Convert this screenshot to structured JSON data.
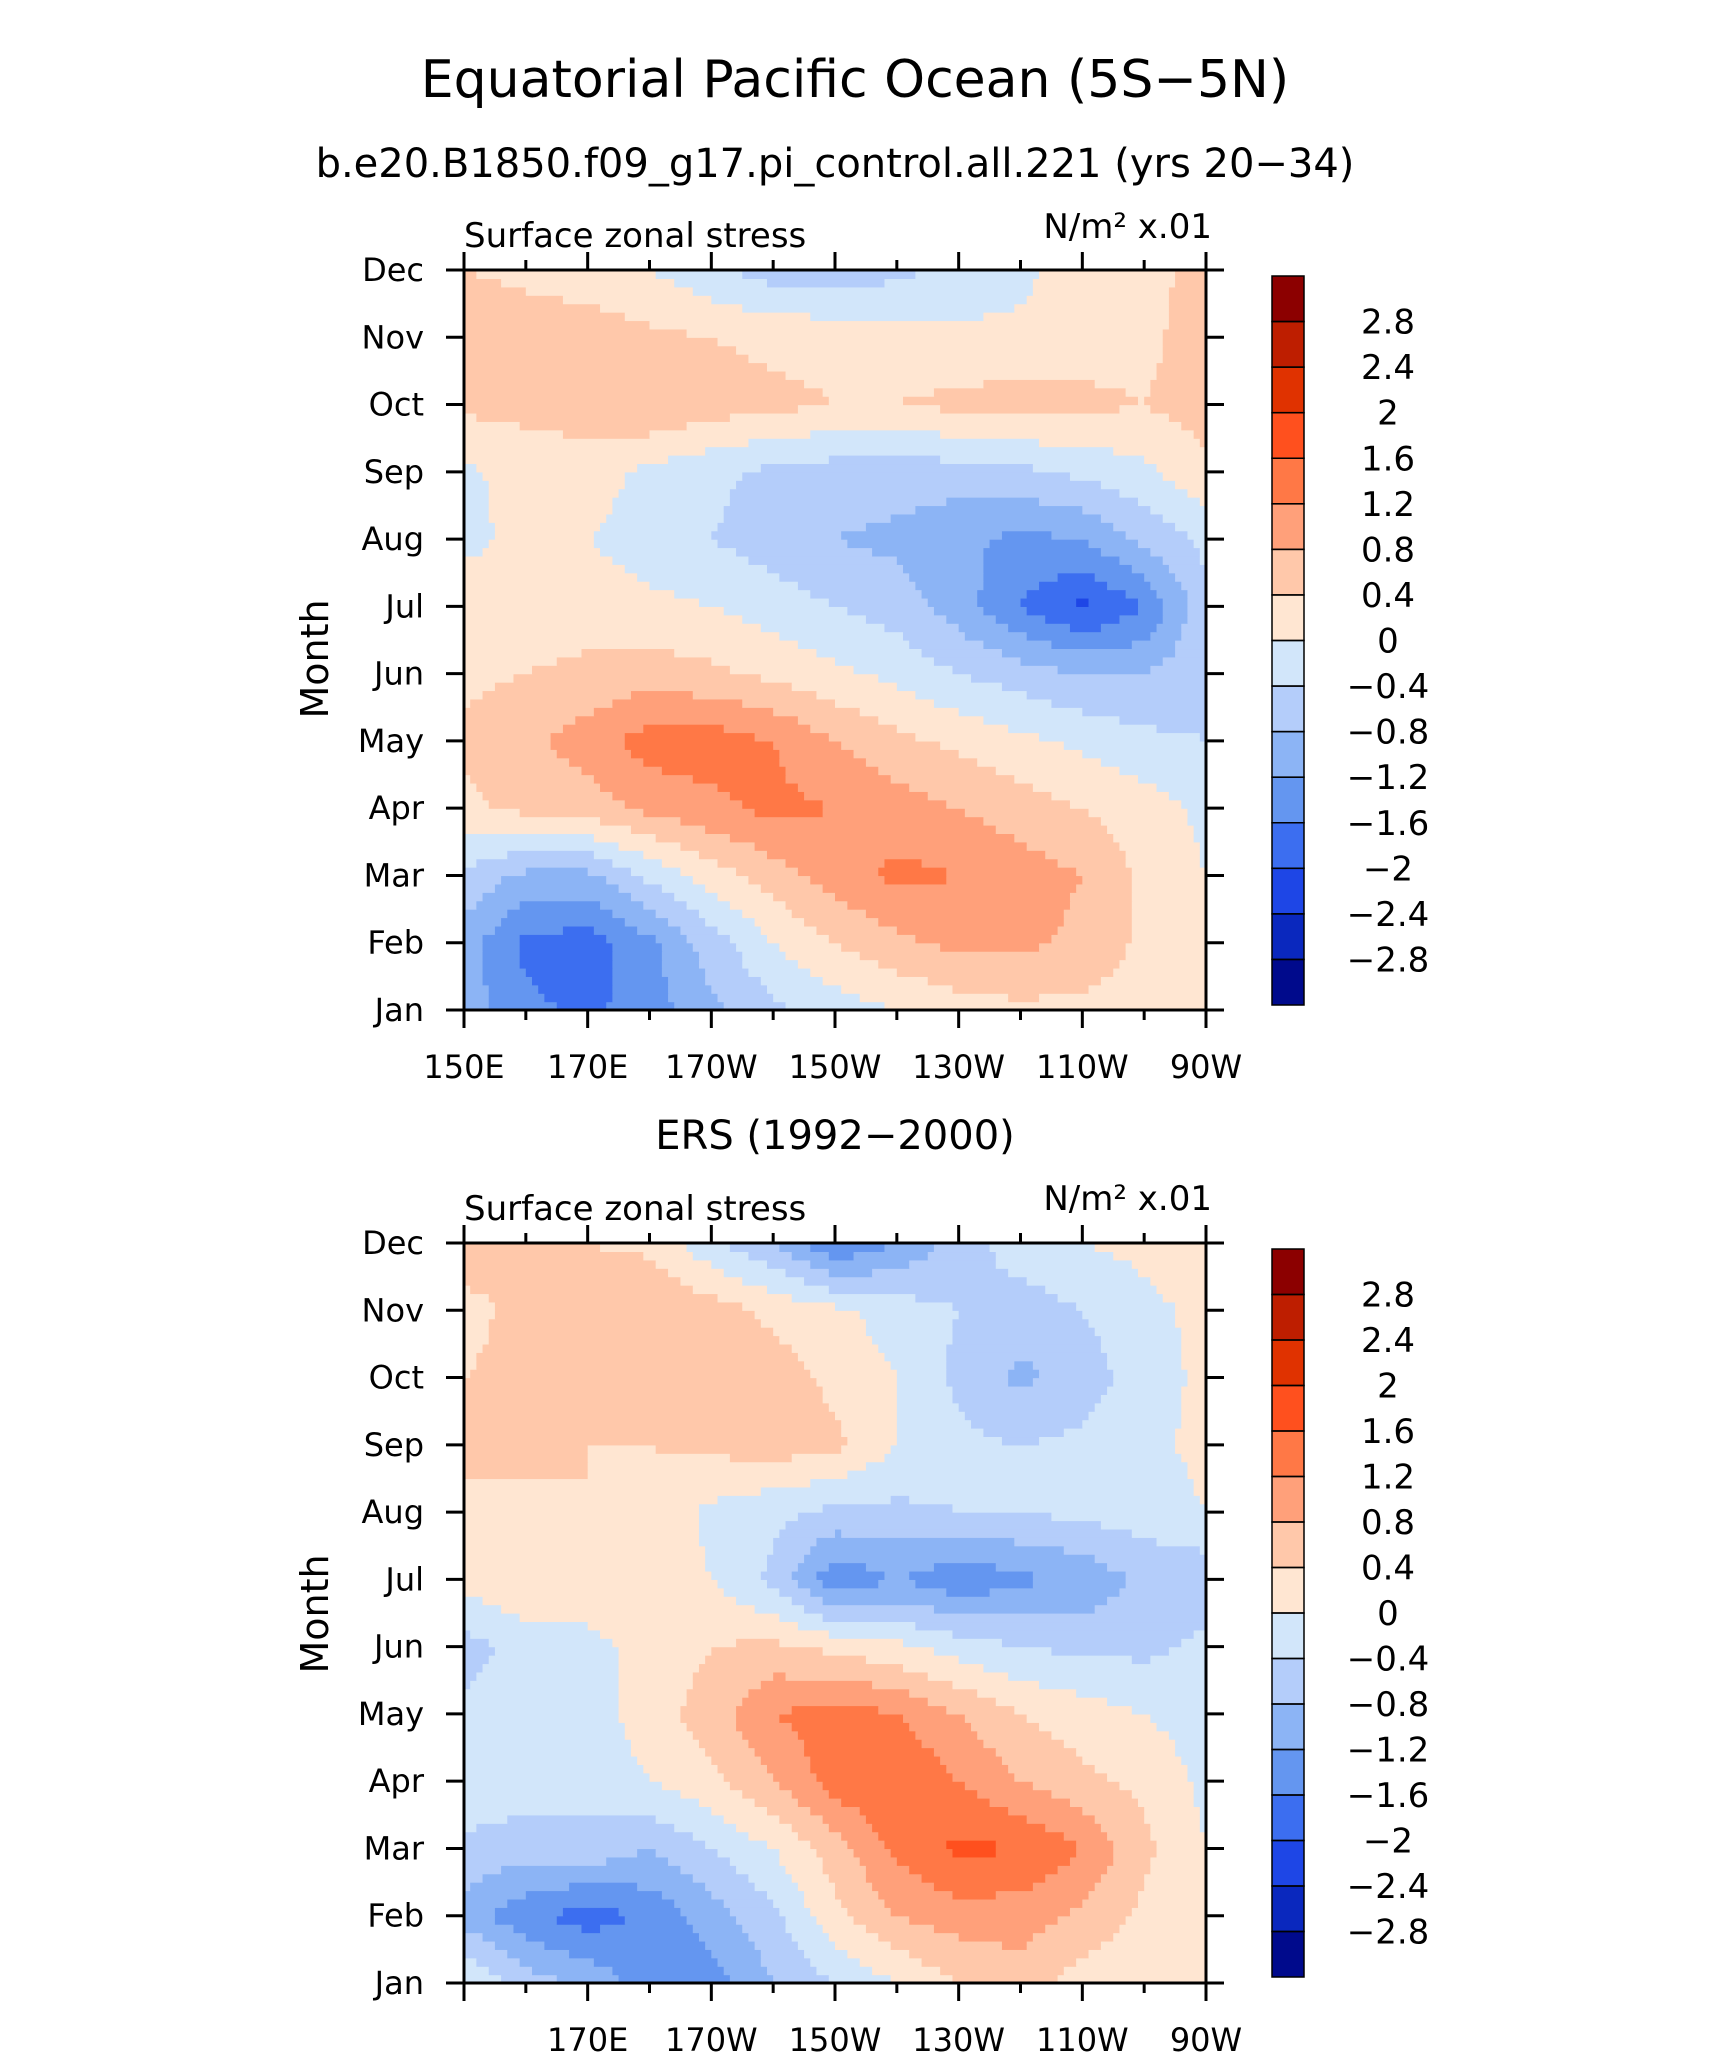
{
  "title": "Equatorial Pacific Ocean (5S−5N)",
  "colorbar": {
    "labels": [
      "2.8",
      "2.4",
      "2",
      "1.6",
      "1.2",
      "0.8",
      "0.4",
      "0",
      "−0.4",
      "−0.8",
      "−1.2",
      "−1.6",
      "−2",
      "−2.4",
      "−2.8"
    ],
    "colors": [
      "#8c0000",
      "#be1e00",
      "#e03200",
      "#ff501e",
      "#ff7846",
      "#ffa07a",
      "#ffc8aa",
      "#ffe6d2",
      "#d2e6fa",
      "#b4cdfa",
      "#8cb4f5",
      "#6496f0",
      "#3c6ef0",
      "#1e46e6",
      "#0a28be",
      "#000a8c"
    ],
    "levels": [
      -2.8,
      -2.4,
      -2.0,
      -1.6,
      -1.2,
      -0.8,
      -0.4,
      0,
      0.4,
      0.8,
      1.2,
      1.6,
      2.0,
      2.4,
      2.8
    ]
  },
  "chart_data": [
    {
      "type": "heatmap",
      "subtitle": "b.e20.B1850.f09_g17.pi_control.all.221 (yrs 20−34)",
      "left_string": "Surface zonal stress",
      "right_string": "N/m² x.01",
      "ylabel": "Month",
      "xlabel": "",
      "xlim": [
        150,
        270
      ],
      "x": [
        150,
        160,
        170,
        180,
        190,
        200,
        210,
        220,
        230,
        240,
        250,
        260,
        270
      ],
      "x_tick_values": [
        150,
        170,
        190,
        210,
        230,
        250,
        270
      ],
      "x_tick_labels": [
        "150E",
        "170E",
        "170W",
        "150W",
        "130W",
        "110W",
        "90W"
      ],
      "y": [
        "Jan",
        "Feb",
        "Mar",
        "Apr",
        "May",
        "Jun",
        "Jul",
        "Aug",
        "Sep",
        "Oct",
        "Nov",
        "Dec"
      ],
      "y_tick_labels": [
        "Jan",
        "Feb",
        "Mar",
        "Apr",
        "May",
        "Jun",
        "Jul",
        "Aug",
        "Sep",
        "Oct",
        "Nov",
        "Dec"
      ],
      "z": [
        [
          -1.0,
          -1.5,
          -1.7,
          -1.4,
          -0.9,
          -0.5,
          -0.2,
          0.0,
          0.2,
          0.3,
          0.3,
          0.2,
          0.0
        ],
        [
          -1.0,
          -1.7,
          -1.8,
          -1.3,
          -0.6,
          0.0,
          0.4,
          0.7,
          0.9,
          0.9,
          0.7,
          0.3,
          0.0
        ],
        [
          -0.5,
          -0.9,
          -0.9,
          -0.3,
          0.2,
          0.6,
          1.0,
          1.3,
          1.2,
          1.0,
          0.8,
          0.3,
          0.0
        ],
        [
          0.3,
          0.5,
          0.6,
          0.9,
          1.1,
          1.3,
          1.2,
          1.0,
          0.8,
          0.6,
          0.4,
          0.2,
          -0.1
        ],
        [
          0.5,
          0.7,
          1.0,
          1.4,
          1.4,
          1.2,
          0.8,
          0.5,
          0.3,
          0.1,
          -0.1,
          -0.3,
          -0.4
        ],
        [
          0.3,
          0.4,
          0.5,
          0.6,
          0.5,
          0.3,
          0.1,
          -0.1,
          -0.4,
          -0.6,
          -0.8,
          -0.8,
          -0.5
        ],
        [
          0.2,
          0.2,
          0.2,
          0.1,
          0.0,
          -0.2,
          -0.4,
          -0.6,
          -1.0,
          -1.6,
          -2.1,
          -1.6,
          -0.5
        ],
        [
          -0.1,
          0.1,
          0.0,
          -0.2,
          -0.4,
          -0.6,
          -0.8,
          -0.9,
          -1.1,
          -1.3,
          -1.2,
          -0.7,
          -0.3
        ],
        [
          -0.1,
          0.2,
          0.2,
          -0.1,
          -0.3,
          -0.5,
          -0.6,
          -0.6,
          -0.6,
          -0.5,
          -0.3,
          -0.1,
          0.3
        ],
        [
          0.5,
          0.5,
          0.6,
          0.8,
          0.6,
          0.5,
          0.4,
          0.4,
          0.5,
          0.6,
          0.5,
          0.4,
          0.6
        ],
        [
          0.8,
          0.6,
          0.6,
          0.5,
          0.4,
          0.3,
          0.3,
          0.2,
          0.1,
          0.1,
          0.2,
          0.3,
          0.6
        ],
        [
          0.4,
          0.3,
          0.2,
          0.0,
          -0.3,
          -0.6,
          -0.7,
          -0.5,
          -0.3,
          -0.1,
          0.2,
          0.3,
          0.5
        ]
      ]
    },
    {
      "type": "heatmap",
      "subtitle": "ERS (1992−2000)",
      "left_string": "Surface zonal stress",
      "right_string": "N/m² x.01",
      "ylabel": "Month",
      "xlabel": "",
      "xlim": [
        150,
        270
      ],
      "x": [
        150,
        160,
        170,
        180,
        190,
        200,
        210,
        220,
        230,
        240,
        250,
        260,
        270
      ],
      "x_tick_values": [
        170,
        190,
        210,
        230,
        250,
        270
      ],
      "x_tick_labels": [
        "170E",
        "170W",
        "150W",
        "130W",
        "110W",
        "90W"
      ],
      "y": [
        "Jan",
        "Feb",
        "Mar",
        "Apr",
        "May",
        "Jun",
        "Jul",
        "Aug",
        "Sep",
        "Oct",
        "Nov",
        "Dec"
      ],
      "y_tick_labels": [
        "Jan",
        "Feb",
        "Mar",
        "Apr",
        "May",
        "Jun",
        "Jul",
        "Aug",
        "Sep",
        "Oct",
        "Nov",
        "Dec"
      ],
      "z": [
        [
          0.1,
          -0.6,
          -0.9,
          -1.4,
          -1.4,
          -0.8,
          -0.4,
          0.0,
          0.4,
          0.6,
          0.2,
          0.1,
          0.0
        ],
        [
          -1.0,
          -1.5,
          -1.8,
          -1.5,
          -1.0,
          -0.5,
          0.3,
          0.8,
          1.0,
          1.0,
          0.7,
          0.3,
          0.0
        ],
        [
          -0.5,
          -0.6,
          -0.5,
          -0.8,
          -0.4,
          0.0,
          0.6,
          1.3,
          1.7,
          1.6,
          1.2,
          0.5,
          0.0
        ],
        [
          -0.1,
          -0.2,
          -0.3,
          0.0,
          0.3,
          0.8,
          1.4,
          1.6,
          1.2,
          0.8,
          0.5,
          0.3,
          -0.1
        ],
        [
          -0.3,
          0.0,
          -0.2,
          0.2,
          0.6,
          1.2,
          1.4,
          1.2,
          0.8,
          0.4,
          0.2,
          0.0,
          -0.2
        ],
        [
          -0.6,
          -0.2,
          -0.1,
          0.1,
          0.4,
          0.5,
          0.3,
          0.1,
          -0.2,
          -0.4,
          -0.5,
          -0.5,
          -0.3
        ],
        [
          0.2,
          0.3,
          0.2,
          0.3,
          0.0,
          -0.5,
          -1.5,
          -1.2,
          -1.5,
          -1.3,
          -1.1,
          -0.7,
          -0.7
        ],
        [
          0.4,
          0.3,
          0.4,
          0.3,
          -0.1,
          -0.3,
          -0.5,
          -0.5,
          -0.4,
          -0.4,
          -0.3,
          -0.2,
          0.0
        ],
        [
          0.4,
          0.5,
          0.4,
          0.4,
          0.5,
          0.6,
          0.5,
          0.0,
          -0.3,
          -0.4,
          -0.3,
          -0.1,
          0.1
        ],
        [
          0.4,
          0.5,
          0.4,
          0.5,
          0.4,
          0.6,
          0.3,
          0.0,
          -0.5,
          -0.9,
          -0.6,
          -0.2,
          0.1
        ],
        [
          0.3,
          0.5,
          0.6,
          0.8,
          0.6,
          0.3,
          0.1,
          -0.2,
          -0.4,
          -0.6,
          -0.4,
          -0.1,
          0.1
        ],
        [
          0.6,
          0.4,
          0.4,
          0.3,
          -0.3,
          -0.8,
          -1.6,
          -1.2,
          -0.6,
          -0.2,
          0.0,
          0.1,
          0.2
        ]
      ]
    }
  ]
}
